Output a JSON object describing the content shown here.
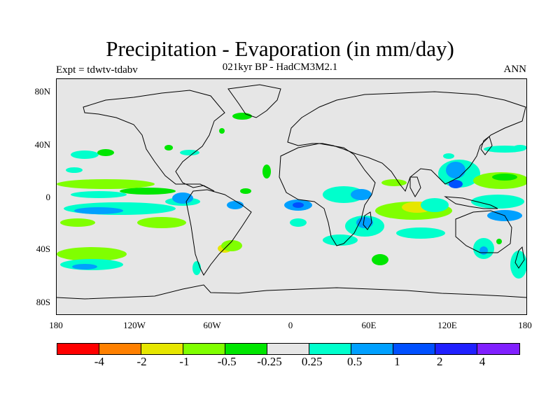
{
  "header": {
    "title": "Precipitation - Evaporation (in mm/day)",
    "subtitle": "021kyr BP - HadCM3M2.1",
    "experiment": "Expt = tdwtv-tdabv",
    "season": "ANN"
  },
  "map": {
    "projection": "cylindrical equidistant",
    "lon_range": [
      -180,
      180
    ],
    "lat_range": [
      -90,
      90
    ],
    "lat_labels": [
      "80N",
      "40N",
      "0",
      "40S",
      "80S"
    ],
    "lat_values": [
      80,
      40,
      0,
      -40,
      -80
    ],
    "lon_labels": [
      "180",
      "120W",
      "60W",
      "0",
      "60E",
      "120E",
      "180"
    ],
    "lon_values": [
      -180,
      -120,
      -60,
      0,
      60,
      120,
      180
    ],
    "background_color": "#e6e6e6"
  },
  "colorbar": {
    "colors": [
      "#ff0000",
      "#ff8000",
      "#e6e600",
      "#80ff00",
      "#00e600",
      "#e6e6e6",
      "#00ffcc",
      "#00a0ff",
      "#0050ff",
      "#2020ff",
      "#8020ff"
    ],
    "labels": [
      "-4",
      "-2",
      "-1",
      "-0.5",
      "-0.25",
      "0.25",
      "0.5",
      "1",
      "2",
      "4"
    ]
  }
}
